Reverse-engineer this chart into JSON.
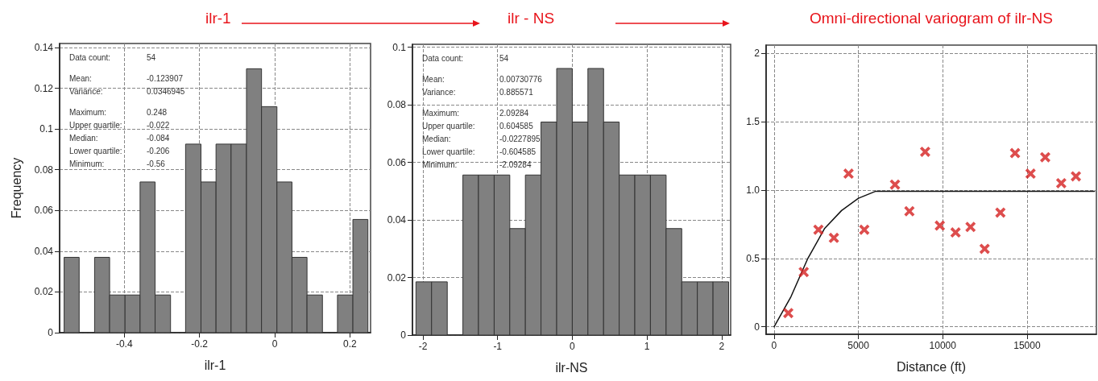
{
  "chart_data": [
    {
      "type": "histogram",
      "title": "ilr-1",
      "xlabel": "ilr-1",
      "ylabel": "Frequency",
      "color": "#808080",
      "grid": true,
      "bins": [
        -0.56,
        -0.52,
        -0.479,
        -0.439,
        -0.398,
        -0.358,
        -0.318,
        -0.277,
        -0.237,
        -0.196,
        -0.156,
        -0.116,
        -0.075,
        -0.035,
        0.006,
        0.046,
        0.086,
        0.127,
        0.167,
        0.208,
        0.248
      ],
      "values": [
        0.037,
        0,
        0.037,
        0.0185,
        0.0185,
        0.074,
        0.0185,
        0,
        0.0926,
        0.074,
        0.0926,
        0.0926,
        0.1296,
        0.111,
        0.074,
        0.037,
        0.0185,
        0,
        0.0185,
        0.0556
      ],
      "xlim": [
        -0.572,
        0.255
      ],
      "xticks": [
        -0.4,
        -0.2,
        0,
        0.2
      ],
      "ylim": [
        0,
        0.142
      ],
      "yticks": [
        0,
        0.02,
        0.04,
        0.06,
        0.08,
        0.1,
        0.12,
        0.14
      ],
      "annotations": [
        "Data count:",
        "54",
        "Mean:",
        "-0.123907",
        "Variance:",
        "0.0346945",
        "Maximum:",
        "0.248",
        "Upper quartile:",
        "-0.022",
        "Median:",
        "-0.084",
        "Lower quartile:",
        "-0.206",
        "Minimum:",
        "-0.56"
      ]
    },
    {
      "type": "histogram",
      "title": "ilr - NS",
      "xlabel": "ilr-NS",
      "color": "#808080",
      "grid": true,
      "bins": [
        -2.093,
        -1.884,
        -1.674,
        -1.465,
        -1.256,
        -1.046,
        -0.837,
        -0.628,
        -0.419,
        -0.209,
        0,
        0.209,
        0.419,
        0.628,
        0.837,
        1.046,
        1.256,
        1.465,
        1.674,
        1.884,
        2.093
      ],
      "values": [
        0.0185,
        0.0185,
        0,
        0.0556,
        0.0556,
        0.0556,
        0.037,
        0.0556,
        0.074,
        0.0926,
        0.074,
        0.0926,
        0.074,
        0.0556,
        0.0556,
        0.0556,
        0.037,
        0.0185,
        0.0185,
        0.0185
      ],
      "xlim": [
        -2.14,
        2.12
      ],
      "xticks": [
        -2,
        -1,
        0,
        1,
        2
      ],
      "ylim": [
        0,
        0.101
      ],
      "yticks": [
        0,
        0.02,
        0.04,
        0.06,
        0.08,
        0.1
      ],
      "annotations": [
        "Data count:",
        "54",
        "Mean:",
        "0.00730776",
        "Variance:",
        "0.885571",
        "Maximum:",
        "2.09284",
        "Upper quartile:",
        "0.604585",
        "Median:",
        "-0.0227895",
        "Lower quartile:",
        "-0.604585",
        "Minimum:",
        "-2.09284"
      ]
    },
    {
      "type": "scatter",
      "title": "Omni-directional variogram of ilr-NS",
      "xlabel": "Distance (ft)",
      "grid": true,
      "xlim": [
        -475,
        19110
      ],
      "xticks": [
        0,
        5000,
        10000,
        15000
      ],
      "ylim": [
        -0.055,
        2.06
      ],
      "yticks": [
        0,
        0.5,
        {
          "value": 1,
          "label": "1.0"
        },
        1.5,
        2
      ],
      "series": [
        {
          "type": "scatter",
          "color": "#d42020",
          "marker": "cross",
          "x": [
            840,
            1756,
            2627,
            3544,
            4415,
            5348,
            7168,
            8022,
            8956,
            9826,
            10759,
            11646,
            12484,
            13418,
            14288,
            15206,
            16076,
            17025,
            17895
          ],
          "values": [
            0.1,
            0.4,
            0.71,
            0.65,
            1.12,
            0.71,
            1.04,
            0.845,
            1.28,
            0.74,
            0.69,
            0.73,
            0.57,
            0.835,
            1.27,
            1.12,
            1.24,
            1.05,
            1.1
          ]
        },
        {
          "type": "line",
          "color": "#111111",
          "marker": "none",
          "line_style": "solid",
          "x": [
            0,
            1000,
            2000,
            3000,
            4000,
            5000,
            6000,
            19000
          ],
          "values": [
            0,
            0.22,
            0.5,
            0.72,
            0.85,
            0.94,
            0.99,
            0.99
          ]
        }
      ]
    }
  ]
}
